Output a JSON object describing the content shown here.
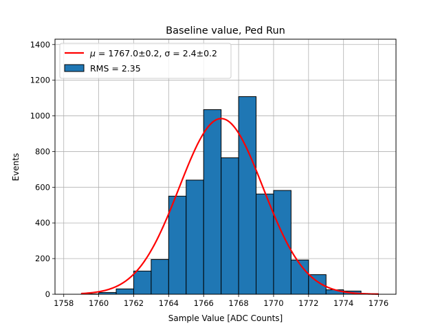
{
  "chart_data": {
    "type": "bar",
    "title": "Baseline value, Ped Run",
    "xlabel": "Sample Value [ADC Counts]",
    "ylabel": "Events",
    "xlim": [
      1757.5,
      1777
    ],
    "ylim": [
      0,
      1430
    ],
    "xticks": [
      "1758",
      "1760",
      "1762",
      "1764",
      "1766",
      "1768",
      "1770",
      "1772",
      "1774",
      "1776"
    ],
    "yticks": [
      "0",
      "200",
      "400",
      "600",
      "800",
      "1000",
      "1200",
      "1400"
    ],
    "grid": true,
    "legend_position": "top-left",
    "histogram": {
      "name": "RMS = 2.35",
      "color": "#1f77b4",
      "bin_edges": [
        1759,
        1760,
        1761,
        1762,
        1763,
        1764,
        1765,
        1766,
        1767,
        1768,
        1769,
        1770,
        1771,
        1772,
        1773,
        1774,
        1775,
        1776
      ],
      "counts": [
        2,
        10,
        30,
        130,
        195,
        550,
        640,
        1035,
        765,
        1108,
        562,
        582,
        192,
        110,
        25,
        18,
        3
      ]
    },
    "fit": {
      "name_mu": "μ",
      "name_rest": " = 1767.0±0.2, σ = 2.4±0.2",
      "color": "#ff0000",
      "mu": 1767.0,
      "sigma": 2.4,
      "amplitude": 985,
      "x_range": [
        1759,
        1776
      ]
    }
  }
}
